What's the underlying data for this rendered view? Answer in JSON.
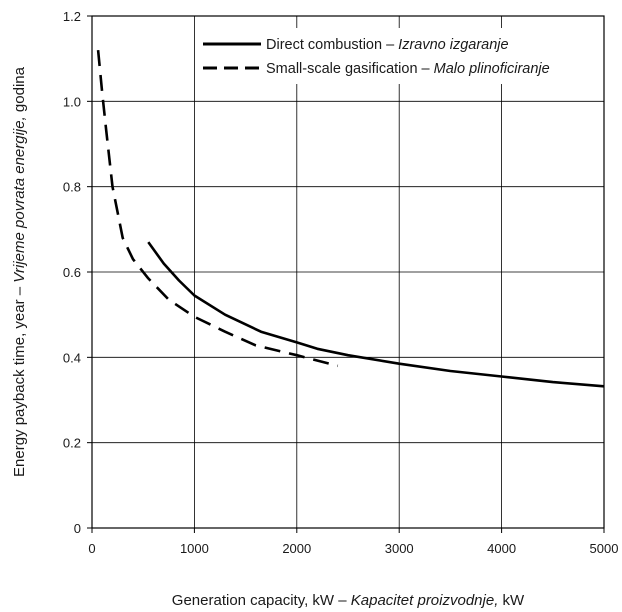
{
  "chart_data": {
    "type": "line",
    "title": "",
    "xlabel": {
      "main": "Generation capacity, kW – ",
      "italic": "Kapacitet proizvodnje,",
      "tail": " kW"
    },
    "ylabel": {
      "main": "Energy payback time, year – ",
      "italic": "Vrijeme povrata energije,",
      "tail": " godina"
    },
    "xlim": [
      0,
      5000
    ],
    "ylim": [
      0,
      1.2
    ],
    "x_ticks": [
      0,
      1000,
      2000,
      3000,
      4000,
      5000
    ],
    "x_tick_labels": [
      "0",
      "1000",
      "2000",
      "3000",
      "4000",
      "5000"
    ],
    "y_ticks": [
      0,
      0.2,
      0.4,
      0.6,
      0.8,
      1.0,
      1.2
    ],
    "y_tick_labels": [
      "0",
      "0.2",
      "0.4",
      "0.6",
      "0.8",
      "1.0",
      "1.2"
    ],
    "grid": true,
    "legend_position": "top-right",
    "series": [
      {
        "name": "Direct combustion – ",
        "name_italic": "Izravno izgaranje",
        "line_style": "solid",
        "color": "#000000",
        "x": [
          550,
          700,
          850,
          1000,
          1300,
          1650,
          2000,
          2200,
          2500,
          3000,
          3500,
          4000,
          4500,
          5000
        ],
        "values": [
          0.67,
          0.62,
          0.58,
          0.545,
          0.5,
          0.46,
          0.435,
          0.42,
          0.405,
          0.385,
          0.368,
          0.355,
          0.342,
          0.332
        ]
      },
      {
        "name": "Small-scale gasification – ",
        "name_italic": "Malo plinoficiranje",
        "line_style": "dashed",
        "color": "#000000",
        "x": [
          60,
          100,
          140,
          200,
          300,
          400,
          550,
          750,
          1000,
          1300,
          1600,
          2000,
          2400
        ],
        "values": [
          1.12,
          1.02,
          0.93,
          0.8,
          0.68,
          0.63,
          0.585,
          0.535,
          0.495,
          0.46,
          0.428,
          0.405,
          0.38
        ]
      }
    ]
  }
}
